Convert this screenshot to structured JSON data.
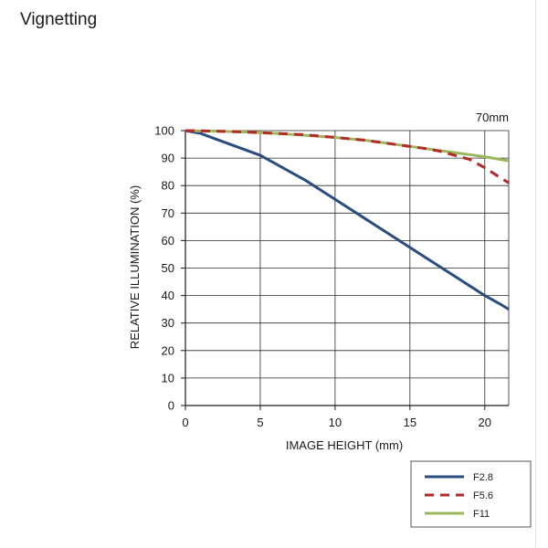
{
  "page": {
    "title": "Vignetting"
  },
  "chart_data": {
    "type": "line",
    "title": "",
    "annotation": "70mm",
    "xlabel": "IMAGE HEIGHT (mm)",
    "ylabel": "RELATIVE ILLUMINATION (%)",
    "xlim": [
      0,
      21.6
    ],
    "ylim": [
      0,
      100
    ],
    "xticks": [
      0,
      5,
      10,
      15,
      20
    ],
    "yticks": [
      0,
      10,
      20,
      30,
      40,
      50,
      60,
      70,
      80,
      90,
      100
    ],
    "grid": true,
    "legend_position": "bottom-right",
    "series": [
      {
        "name": "F2.8",
        "color": "#2b4c7e",
        "dash": "solid",
        "x": [
          0,
          1,
          2,
          3,
          4,
          5,
          6,
          7,
          8,
          9,
          10,
          11,
          12,
          13,
          14,
          15,
          16,
          17,
          18,
          19,
          20,
          21,
          21.6
        ],
        "y": [
          100,
          99,
          97,
          95,
          93,
          91,
          88,
          85,
          82,
          78.5,
          75,
          71.5,
          68,
          64.5,
          61,
          57.5,
          54,
          50.5,
          47,
          43.5,
          40,
          37,
          35
        ]
      },
      {
        "name": "F5.6",
        "color": "#b22a2a",
        "dash": "dashed",
        "x": [
          0,
          2,
          4,
          6,
          8,
          10,
          12,
          14,
          16,
          17,
          18,
          19,
          20,
          21,
          21.6
        ],
        "y": [
          100,
          99.8,
          99.5,
          99,
          98.5,
          97.5,
          96.5,
          95,
          93.5,
          92.5,
          91,
          89.5,
          86.5,
          83,
          81
        ]
      },
      {
        "name": "F11",
        "color": "#9ab85a",
        "dash": "solid",
        "x": [
          0,
          2,
          4,
          6,
          8,
          10,
          12,
          14,
          16,
          18,
          20,
          21.6
        ],
        "y": [
          100,
          99.8,
          99.5,
          99,
          98.3,
          97.5,
          96.5,
          95,
          93.5,
          92,
          90.5,
          89
        ]
      }
    ]
  }
}
